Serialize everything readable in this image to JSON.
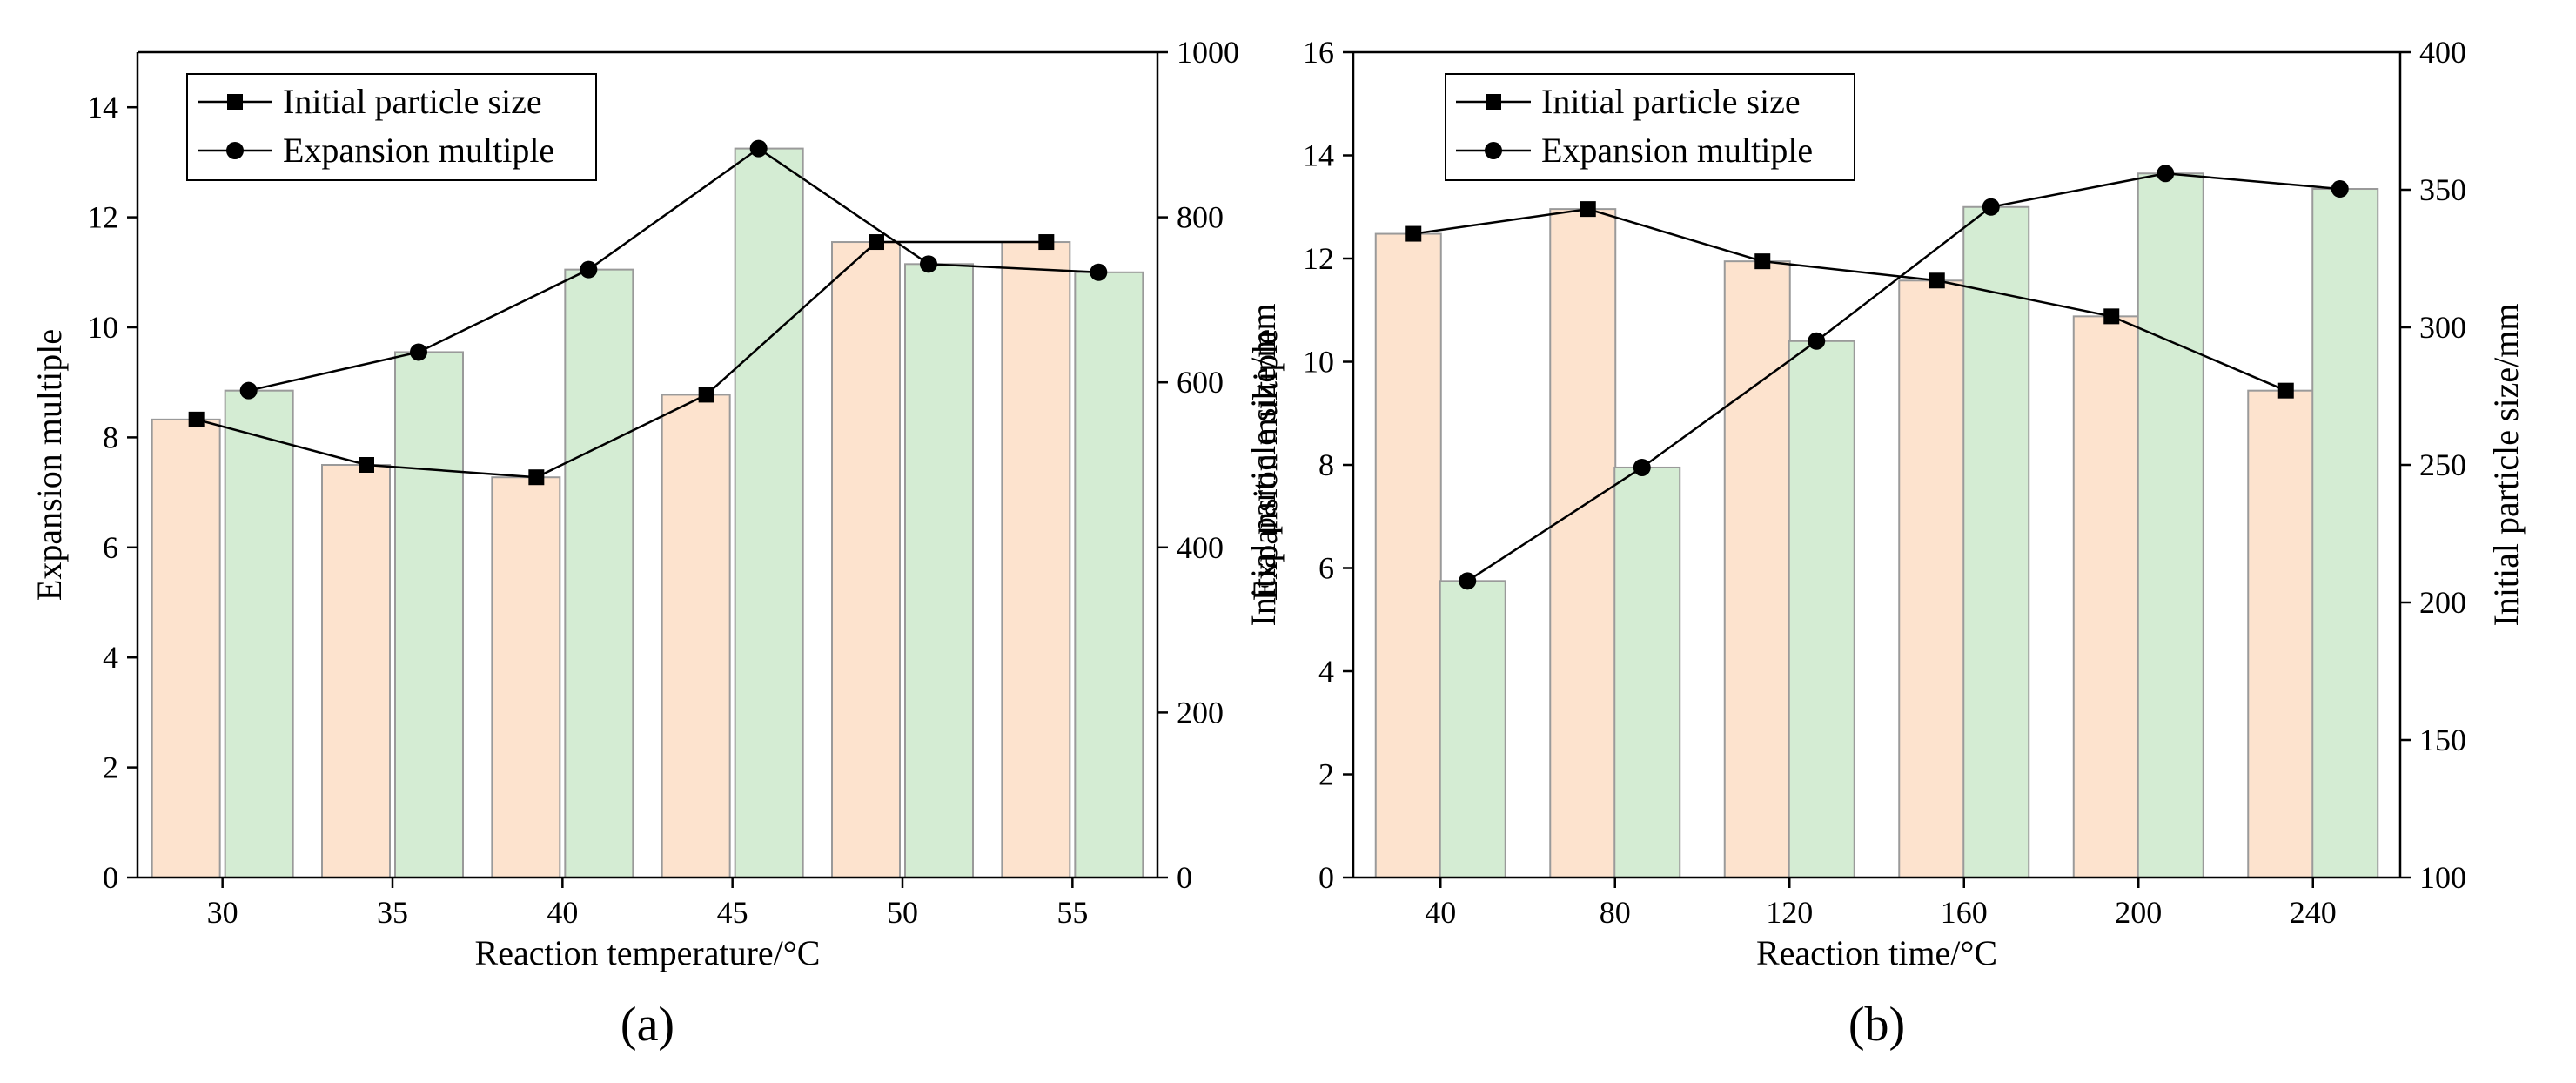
{
  "chart_data": [
    {
      "type": "bar+line",
      "panel_label": "(a)",
      "xlabel": "Reaction temperature/°C",
      "ylabel_left": "Expansion multiple",
      "ylabel_right": "Initial particle size/mm",
      "categories": [
        "30",
        "35",
        "40",
        "45",
        "50",
        "55"
      ],
      "ylim_left": [
        0,
        15
      ],
      "yticks_left": [
        0,
        2,
        4,
        6,
        8,
        10,
        12,
        14
      ],
      "ylim_right": [
        0,
        1000
      ],
      "yticks_right": [
        0,
        200,
        400,
        600,
        800,
        1000
      ],
      "bars": {
        "initial_particle_size": [
          555,
          500,
          485,
          585,
          770,
          770
        ],
        "expansion_multiple": [
          8.85,
          9.55,
          11.05,
          13.25,
          11.15,
          11.0
        ]
      },
      "series": [
        {
          "name": "Initial particle size",
          "marker": "square",
          "axis": "right",
          "values": [
            555,
            500,
            485,
            585,
            770,
            770
          ]
        },
        {
          "name": "Expansion multiple",
          "marker": "circle",
          "axis": "left",
          "values": [
            8.85,
            9.55,
            11.05,
            13.25,
            11.15,
            11.0
          ]
        }
      ],
      "legend": [
        "Initial particle size",
        "Expansion multiple"
      ],
      "legend_position": "top-left"
    },
    {
      "type": "bar+line",
      "panel_label": "(b)",
      "xlabel": "Reaction time/°C",
      "ylabel_left": "Expansion multiple",
      "ylabel_right": "Initial particle size/mm",
      "categories": [
        "40",
        "80",
        "120",
        "160",
        "200",
        "240"
      ],
      "ylim_left": [
        0,
        16
      ],
      "yticks_left": [
        0,
        2,
        4,
        6,
        8,
        10,
        12,
        14,
        16
      ],
      "ylim_right": [
        100,
        400
      ],
      "yticks_right": [
        100,
        150,
        200,
        250,
        300,
        350,
        400
      ],
      "bars": {
        "initial_particle_size": [
          334,
          343,
          324,
          317,
          304,
          277
        ],
        "expansion_multiple": [
          5.75,
          7.95,
          10.4,
          13.0,
          13.65,
          13.35
        ]
      },
      "series": [
        {
          "name": "Initial particle size",
          "marker": "square",
          "axis": "right",
          "values": [
            334,
            343,
            324,
            317,
            304,
            277
          ]
        },
        {
          "name": "Expansion multiple",
          "marker": "circle",
          "axis": "left",
          "values": [
            5.75,
            7.95,
            10.4,
            13.0,
            13.65,
            13.35
          ]
        }
      ],
      "legend": [
        "Initial particle size",
        "Expansion multiple"
      ],
      "legend_position": "top-left"
    }
  ],
  "colors": {
    "particle_bar_fill": "#fde3ce",
    "expansion_bar_fill": "#d4ecd3",
    "bar_stroke": "#9a9a9a",
    "line": "#000000"
  }
}
